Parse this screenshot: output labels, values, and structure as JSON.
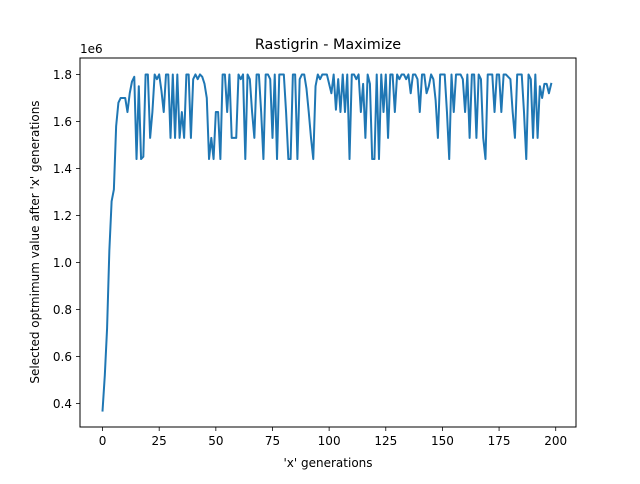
{
  "chart_data": {
    "type": "line",
    "title": "Rastigrin - Maximize",
    "xlabel": "'x' generations",
    "ylabel": "Selected optmimum value after 'x' generations",
    "y_scale_label": "1e6",
    "xlim": [
      -9.95,
      208.95
    ],
    "ylim": [
      0.3,
      1.87
    ],
    "x_ticks": [
      0,
      25,
      50,
      75,
      100,
      125,
      150,
      175,
      200
    ],
    "x_tick_labels": [
      "0",
      "25",
      "50",
      "75",
      "100",
      "125",
      "150",
      "175",
      "200"
    ],
    "y_ticks": [
      0.4,
      0.6,
      0.8,
      1.0,
      1.2,
      1.4,
      1.6,
      1.8
    ],
    "y_tick_labels": [
      "0.4",
      "0.6",
      "0.8",
      "1.0",
      "1.2",
      "1.4",
      "1.6",
      "1.8"
    ],
    "grid": false,
    "line_color": "#1f77b4",
    "x_start": 0,
    "x_step": 1,
    "values": [
      0.37,
      0.52,
      0.72,
      1.05,
      1.26,
      1.31,
      1.58,
      1.68,
      1.7,
      1.7,
      1.7,
      1.64,
      1.72,
      1.77,
      1.79,
      1.44,
      1.75,
      1.44,
      1.45,
      1.8,
      1.8,
      1.53,
      1.64,
      1.8,
      1.78,
      1.8,
      1.73,
      1.64,
      1.8,
      1.8,
      1.53,
      1.8,
      1.53,
      1.8,
      1.53,
      1.64,
      1.53,
      1.8,
      1.8,
      1.53,
      1.78,
      1.8,
      1.78,
      1.8,
      1.79,
      1.76,
      1.7,
      1.44,
      1.53,
      1.44,
      1.64,
      1.64,
      1.44,
      1.8,
      1.8,
      1.64,
      1.8,
      1.53,
      1.53,
      1.53,
      1.8,
      1.78,
      1.8,
      1.44,
      1.8,
      1.78,
      1.64,
      1.53,
      1.8,
      1.8,
      1.64,
      1.44,
      1.8,
      1.8,
      1.78,
      1.53,
      1.8,
      1.44,
      1.8,
      1.8,
      1.8,
      1.64,
      1.44,
      1.44,
      1.8,
      1.8,
      1.44,
      1.78,
      1.8,
      1.8,
      1.74,
      1.64,
      1.53,
      1.44,
      1.75,
      1.8,
      1.78,
      1.8,
      1.8,
      1.8,
      1.76,
      1.72,
      1.8,
      1.65,
      1.78,
      1.64,
      1.8,
      1.64,
      1.8,
      1.44,
      1.8,
      1.8,
      1.78,
      1.8,
      1.64,
      1.76,
      1.53,
      1.8,
      1.76,
      1.44,
      1.44,
      1.8,
      1.44,
      1.8,
      1.64,
      1.8,
      1.53,
      1.8,
      1.8,
      1.64,
      1.8,
      1.78,
      1.8,
      1.8,
      1.78,
      1.8,
      1.72,
      1.8,
      1.8,
      1.78,
      1.64,
      1.8,
      1.8,
      1.72,
      1.75,
      1.8,
      1.78,
      1.69,
      1.53,
      1.8,
      1.8,
      1.8,
      1.64,
      1.44,
      1.8,
      1.64,
      1.8,
      1.8,
      1.8,
      1.78,
      1.64,
      1.8,
      1.53,
      1.8,
      1.8,
      1.53,
      1.8,
      1.78,
      1.53,
      1.44,
      1.8,
      1.8,
      1.8,
      1.64,
      1.8,
      1.8,
      1.64,
      1.8,
      1.8,
      1.79,
      1.78,
      1.64,
      1.53,
      1.8,
      1.8,
      1.8,
      1.64,
      1.44,
      1.8,
      1.78,
      1.53,
      1.8,
      1.53,
      1.75,
      1.7,
      1.76,
      1.76,
      1.72,
      1.76
    ]
  }
}
